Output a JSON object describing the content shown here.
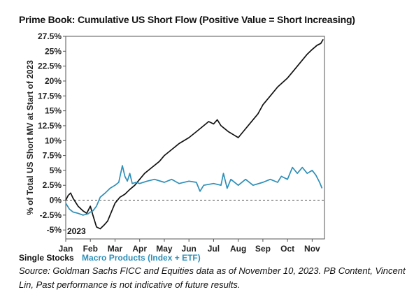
{
  "chart_data": {
    "type": "line",
    "title": "Prime Book: Cumulative US Short Flow (Positive Value = Short Increasing)",
    "ylabel": "% of Total US Short MV at Start of 2023",
    "year_label": "2023",
    "ylim": [
      -6.5,
      27.5
    ],
    "yticks": [
      27.5,
      25,
      22.5,
      20,
      17.5,
      15,
      12.5,
      10,
      7.5,
      5,
      2.5,
      0,
      -2.5,
      -5
    ],
    "ytick_labels": [
      "27.5%",
      "25%",
      "22.5%",
      "20%",
      "17.5%",
      "15%",
      "12.5%",
      "10%",
      "7.5%",
      "5%",
      "2.5%",
      "0%",
      "-2.5%",
      "-5%"
    ],
    "xlim": [
      0,
      10.5
    ],
    "xticks": [
      0,
      1,
      2,
      3,
      4,
      5,
      6,
      7,
      8,
      9,
      10
    ],
    "xtick_labels": [
      "Jan",
      "Feb",
      "Mar",
      "Apr",
      "May",
      "Jun",
      "Jul",
      "Aug",
      "Sep",
      "Oct",
      "Nov"
    ],
    "zero_line": "dashed",
    "grid": false,
    "series": [
      {
        "name": "Single Stocks",
        "color": "#111111",
        "x": [
          0,
          0.1,
          0.2,
          0.3,
          0.5,
          0.7,
          0.85,
          1.0,
          1.1,
          1.25,
          1.4,
          1.55,
          1.7,
          1.85,
          2.0,
          2.2,
          2.4,
          2.6,
          2.8,
          3.0,
          3.2,
          3.5,
          3.8,
          4.0,
          4.3,
          4.6,
          5.0,
          5.3,
          5.6,
          5.8,
          6.0,
          6.15,
          6.3,
          6.45,
          6.6,
          6.8,
          7.0,
          7.2,
          7.5,
          7.8,
          8.0,
          8.3,
          8.6,
          9.0,
          9.3,
          9.6,
          9.8,
          10.0,
          10.2,
          10.35,
          10.45
        ],
        "values": [
          0,
          0.8,
          1.2,
          0.3,
          -1.0,
          -1.8,
          -2.2,
          -1.0,
          -2.5,
          -4.5,
          -4.8,
          -4.2,
          -3.5,
          -2.0,
          -0.5,
          0.5,
          1.0,
          1.8,
          2.5,
          3.5,
          4.5,
          5.5,
          6.5,
          7.5,
          8.5,
          9.5,
          10.5,
          11.5,
          12.5,
          13.2,
          12.8,
          13.5,
          12.5,
          12.0,
          11.5,
          11.0,
          10.5,
          11.5,
          13.0,
          14.5,
          16.0,
          17.5,
          19.0,
          20.5,
          22.0,
          23.5,
          24.5,
          25.3,
          26.0,
          26.3,
          27.0
        ]
      },
      {
        "name": "Macro Products (Index + ETF)",
        "color": "#2e8fb8",
        "x": [
          0,
          0.15,
          0.3,
          0.5,
          0.7,
          0.9,
          1.0,
          1.1,
          1.25,
          1.4,
          1.6,
          1.8,
          2.0,
          2.15,
          2.3,
          2.4,
          2.5,
          2.6,
          2.7,
          2.85,
          3.0,
          3.3,
          3.6,
          4.0,
          4.3,
          4.6,
          5.0,
          5.3,
          5.45,
          5.6,
          6.0,
          6.3,
          6.4,
          6.55,
          6.7,
          7.0,
          7.3,
          7.6,
          8.0,
          8.3,
          8.6,
          8.75,
          9.0,
          9.2,
          9.4,
          9.6,
          9.8,
          10.0,
          10.15,
          10.3,
          10.4
        ],
        "values": [
          -0.5,
          -1.5,
          -2.0,
          -2.2,
          -2.5,
          -2.3,
          -2.0,
          -1.8,
          -1.0,
          0.5,
          1.2,
          2.0,
          2.5,
          3.0,
          5.8,
          4.0,
          3.2,
          4.5,
          2.8,
          3.0,
          2.8,
          3.2,
          3.5,
          3.0,
          3.5,
          2.8,
          3.2,
          3.0,
          1.5,
          2.5,
          2.8,
          2.5,
          4.5,
          2.0,
          3.5,
          2.5,
          3.5,
          2.5,
          3.0,
          3.5,
          3.0,
          4.0,
          3.5,
          5.5,
          4.5,
          5.5,
          4.5,
          5.0,
          4.2,
          3.0,
          2.0
        ]
      }
    ],
    "legend_position": "bottom-left"
  },
  "source_text": "Source: Goldman Sachs FICC and Equities data as of November 10, 2023. PB Content, Vincent Lin, Past performance is not indicative of future results."
}
